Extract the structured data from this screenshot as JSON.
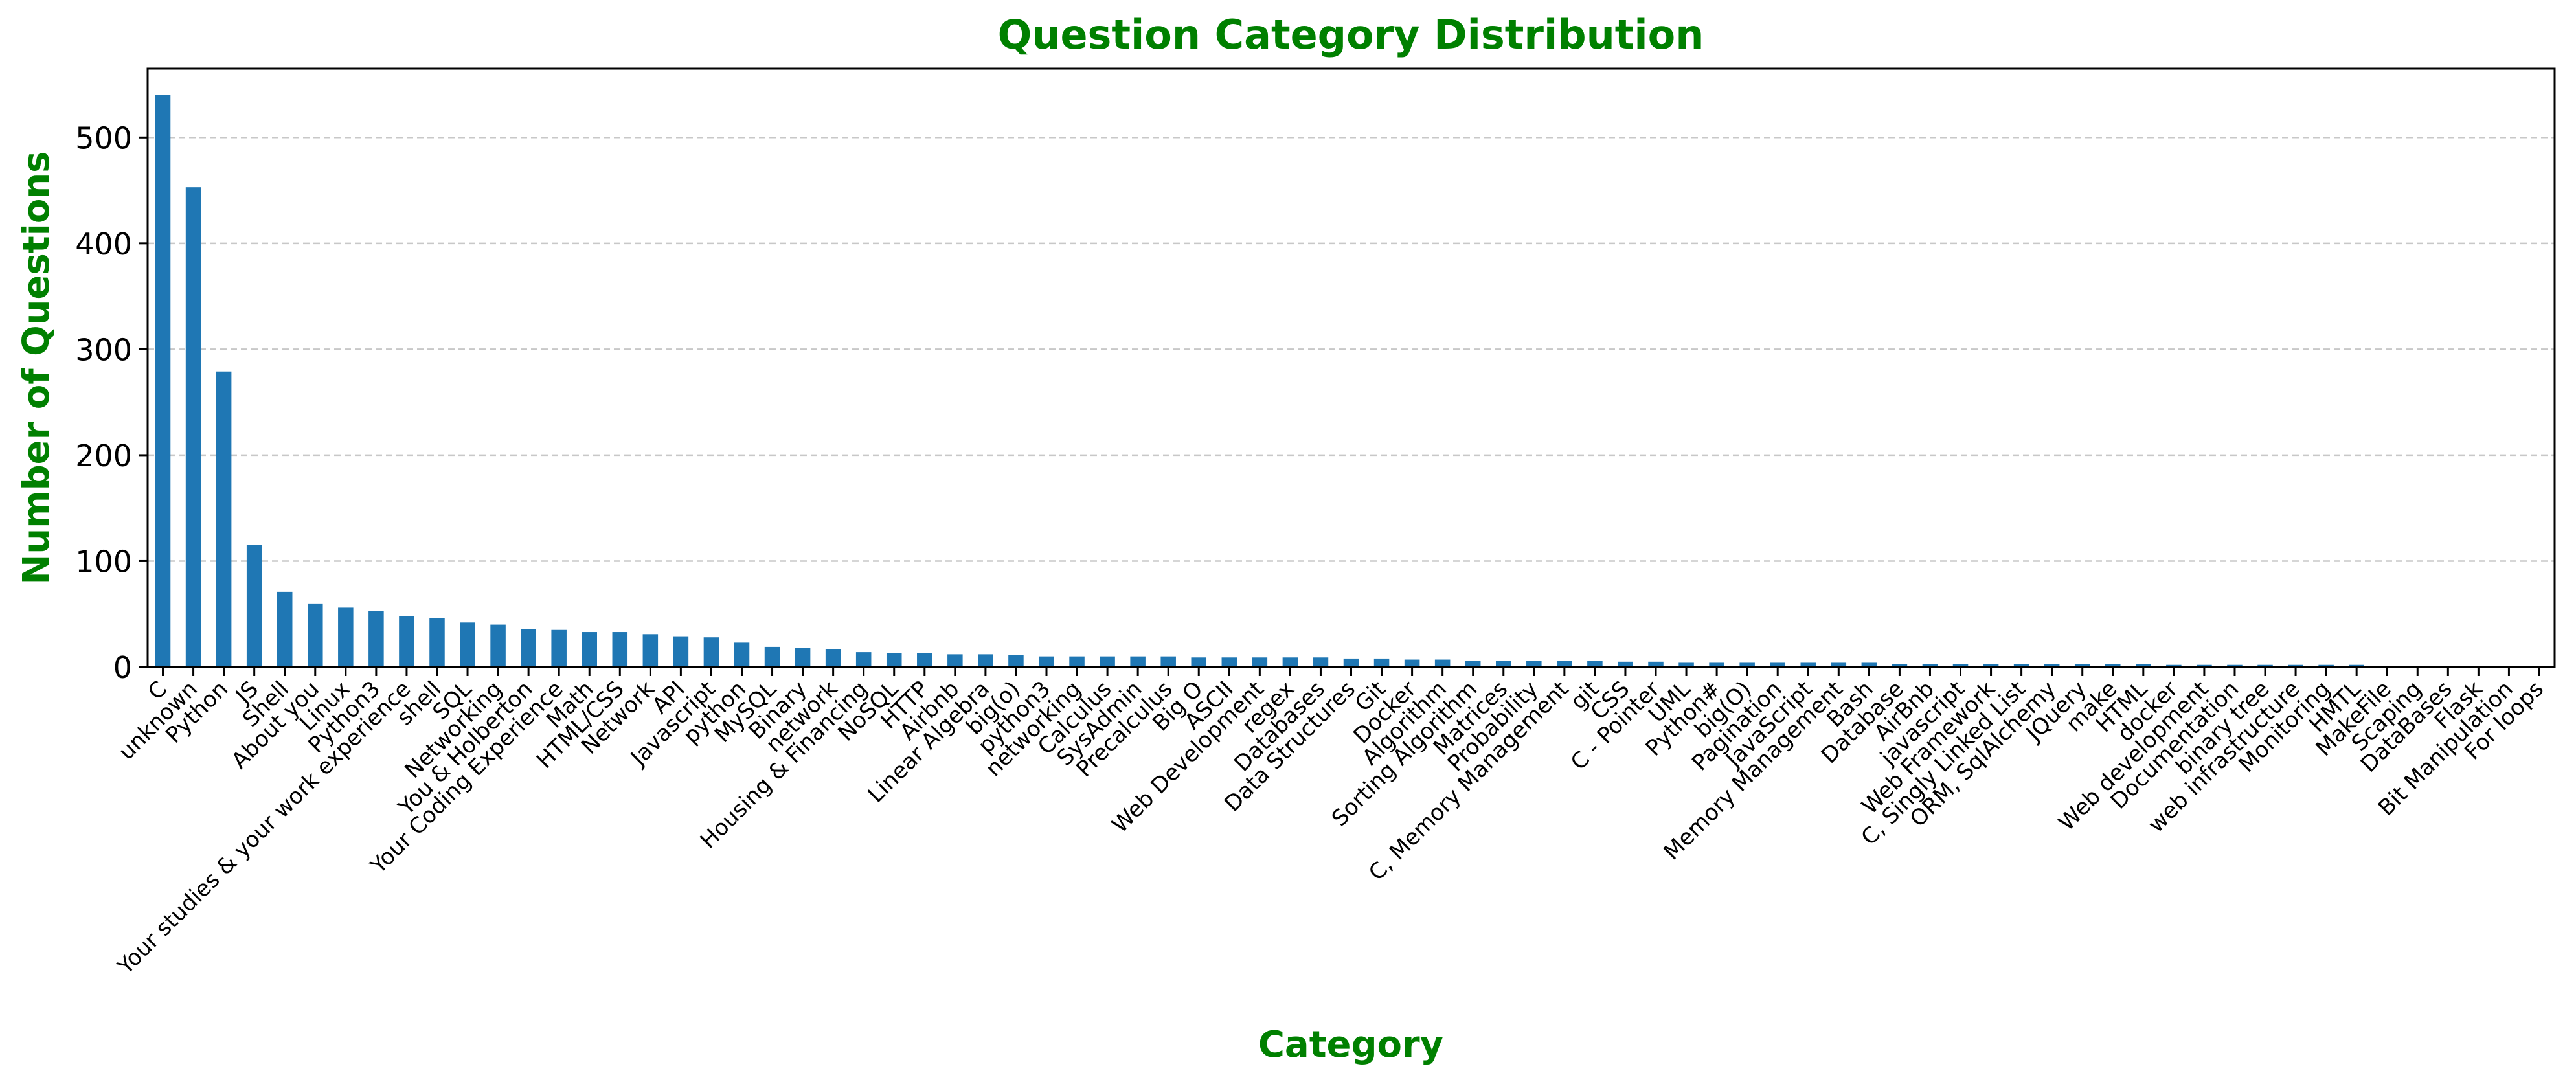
{
  "chart_data": {
    "type": "bar",
    "title": "Question Category Distribution",
    "xlabel": "Category",
    "ylabel": "Number of Questions",
    "ylim": [
      0,
      565
    ],
    "yticks": [
      0,
      100,
      200,
      300,
      400,
      500
    ],
    "grid": "y-dashed",
    "colors": {
      "bar": "#1f77b4",
      "title": "#008000",
      "axis_label": "#008000",
      "grid": "#c8c8c8",
      "text": "#000000"
    },
    "categories": [
      "C",
      "unknown",
      "Python",
      "JS",
      "Shell",
      "About you",
      "Linux",
      "Python3",
      "Your studies & your work experience",
      "shell",
      "SQL",
      "Networking",
      "You & Holberton",
      "Your Coding Experience",
      "Math",
      "HTML/CSS",
      "Network",
      "API",
      "Javascript",
      "python",
      "MySQL",
      "Binary",
      "network",
      "Housing & Financing",
      "NoSQL",
      "HTTP",
      "Airbnb",
      "Linear Algebra",
      "big(o)",
      "python3",
      "networking",
      "Calculus",
      "SysAdmin",
      "Precalculus",
      "Big O",
      "ASCII",
      "Web Development",
      "regex",
      "Databases",
      "Data Structures",
      "Git",
      "Docker",
      "Algorithm",
      "Sorting Algorithm",
      "Matrices",
      "Probability",
      "C, Memory Management",
      "git",
      "CSS",
      "C - Pointer",
      "UML",
      "Python#",
      "big(O)",
      "Pagination",
      "JavaScript",
      "Memory Management",
      "Bash",
      "Database",
      "AirBnb",
      "javascript",
      "Web Framework",
      "C, Singly Linked List",
      "ORM, SqlAlchemy",
      "JQuery",
      "make",
      "HTML",
      "docker",
      "Web development",
      "Documentation",
      "binary tree",
      "web infrastructure",
      "Monitoring",
      "HMTL",
      "MakeFile",
      "Scaping",
      "DataBases",
      "Flask",
      "Bit Manipulation",
      "For loops"
    ],
    "values": [
      540,
      453,
      279,
      115,
      71,
      60,
      56,
      53,
      48,
      46,
      42,
      40,
      36,
      35,
      33,
      33,
      31,
      29,
      28,
      23,
      19,
      18,
      17,
      14,
      13,
      13,
      12,
      12,
      11,
      10,
      10,
      10,
      10,
      10,
      9,
      9,
      9,
      9,
      9,
      8,
      8,
      7,
      7,
      6,
      6,
      6,
      6,
      6,
      5,
      5,
      4,
      4,
      4,
      4,
      4,
      4,
      4,
      3,
      3,
      3,
      3,
      3,
      3,
      3,
      3,
      3,
      2,
      2,
      2,
      2,
      2,
      2,
      2,
      1,
      1,
      1,
      1,
      1,
      1
    ]
  }
}
